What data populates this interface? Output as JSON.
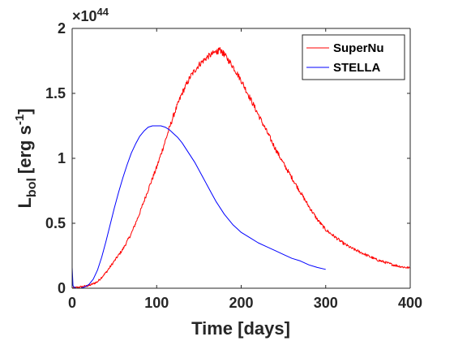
{
  "chart_data": {
    "type": "line",
    "xlabel": "Time [days]",
    "ylabel": {
      "main": "L",
      "sub": "bol",
      "units": "[erg s",
      "units_sup": "-1",
      "close": "]"
    },
    "y_exponent": {
      "times": "×10",
      "power": "44"
    },
    "xlim": [
      0,
      400
    ],
    "ylim": [
      0,
      2
    ],
    "x_ticks": [
      0,
      100,
      200,
      300,
      400
    ],
    "x_tick_labels": [
      "0",
      "100",
      "200",
      "300",
      "400"
    ],
    "y_ticks": [
      0,
      0.5,
      1,
      1.5,
      2
    ],
    "y_tick_labels": [
      "0",
      "0.5",
      "1",
      "1.5",
      "2"
    ],
    "grid": false,
    "legend_position": "top-right",
    "series": [
      {
        "name": "SuperNu",
        "color": "#ff0000",
        "noisy": true,
        "x": [
          0,
          10,
          20,
          30,
          40,
          50,
          60,
          70,
          80,
          90,
          100,
          110,
          120,
          130,
          140,
          150,
          160,
          170,
          175,
          180,
          190,
          200,
          210,
          220,
          230,
          240,
          250,
          260,
          270,
          280,
          290,
          300,
          310,
          320,
          330,
          340,
          350,
          360,
          370,
          380,
          390,
          400
        ],
        "y": [
          0.0,
          0.01,
          0.02,
          0.05,
          0.12,
          0.21,
          0.3,
          0.42,
          0.58,
          0.76,
          0.93,
          1.13,
          1.33,
          1.5,
          1.63,
          1.72,
          1.78,
          1.82,
          1.83,
          1.8,
          1.71,
          1.6,
          1.47,
          1.34,
          1.21,
          1.08,
          0.96,
          0.85,
          0.74,
          0.63,
          0.53,
          0.45,
          0.4,
          0.35,
          0.31,
          0.28,
          0.25,
          0.22,
          0.2,
          0.18,
          0.165,
          0.155
        ]
      },
      {
        "name": "STELLA",
        "color": "#0000ff",
        "noisy": false,
        "x": [
          0,
          1,
          2,
          5,
          10,
          15,
          20,
          25,
          30,
          35,
          40,
          45,
          50,
          55,
          60,
          65,
          70,
          75,
          80,
          85,
          90,
          95,
          100,
          105,
          110,
          115,
          120,
          125,
          130,
          135,
          140,
          145,
          150,
          155,
          160,
          165,
          170,
          175,
          180,
          185,
          190,
          195,
          200,
          210,
          220,
          230,
          240,
          250,
          260,
          270,
          280,
          290,
          300
        ],
        "y": [
          0.16,
          0.02,
          0.01,
          0.0,
          0.0,
          0.01,
          0.03,
          0.07,
          0.14,
          0.24,
          0.36,
          0.49,
          0.62,
          0.74,
          0.85,
          0.95,
          1.04,
          1.11,
          1.17,
          1.21,
          1.24,
          1.25,
          1.25,
          1.25,
          1.24,
          1.22,
          1.19,
          1.16,
          1.12,
          1.07,
          1.02,
          0.97,
          0.91,
          0.85,
          0.79,
          0.73,
          0.67,
          0.62,
          0.57,
          0.53,
          0.49,
          0.46,
          0.43,
          0.39,
          0.35,
          0.32,
          0.29,
          0.26,
          0.23,
          0.21,
          0.18,
          0.16,
          0.145
        ]
      }
    ]
  }
}
